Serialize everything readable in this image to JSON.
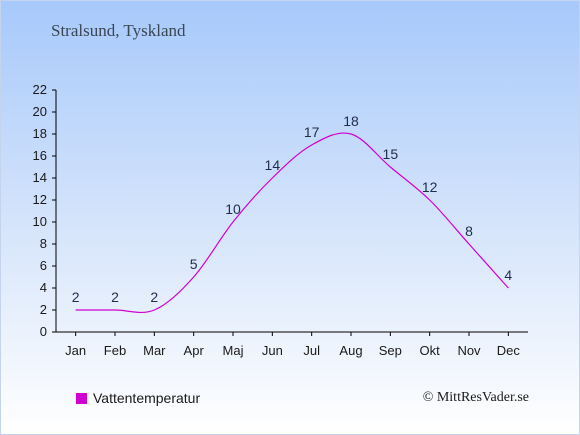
{
  "header": {
    "place": "Stralsund, Tyskland"
  },
  "legend": {
    "label": "Vattentemperatur",
    "color": "#d100d1"
  },
  "credit": "© MittResVader.se",
  "chart_data": {
    "type": "line",
    "title": "Stralsund, Tyskland",
    "xlabel": "",
    "ylabel": "",
    "categories": [
      "Jan",
      "Feb",
      "Mar",
      "Apr",
      "Maj",
      "Jun",
      "Jul",
      "Aug",
      "Sep",
      "Okt",
      "Nov",
      "Dec"
    ],
    "series": [
      {
        "name": "Vattentemperatur",
        "values": [
          2,
          2,
          2,
          5,
          10,
          14,
          17,
          18,
          15,
          12,
          8,
          4
        ],
        "color": "#d100d1"
      }
    ],
    "ylim": [
      0,
      22
    ],
    "yticks": [
      0,
      2,
      4,
      6,
      8,
      10,
      12,
      14,
      16,
      18,
      20,
      22
    ],
    "grid": false,
    "legend_position": "bottom-left"
  }
}
